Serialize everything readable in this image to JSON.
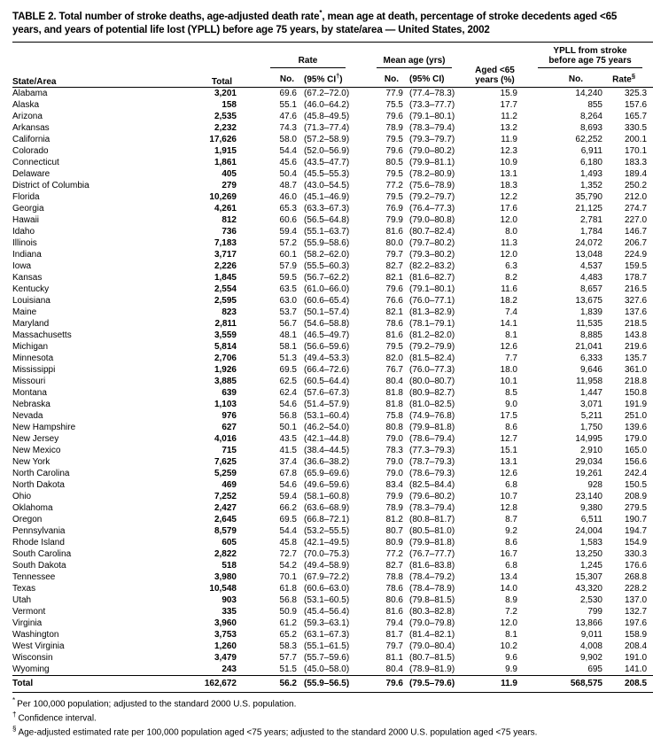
{
  "title": {
    "p1": "TABLE 2. Total number of stroke deaths, age-adjusted death rate",
    "sup": "*",
    "p2": ", mean age at death, percentage of stroke decedents aged <65 years, and years of potential life lost (YPLL) before age 75 years, by state/area — United States, 2002"
  },
  "header": {
    "state_area": "State/Area",
    "total": "Total",
    "rate_group": "Rate",
    "mean_group": "Mean age (yrs)",
    "aged_line1": "Aged <65",
    "aged_line2": "years (%)",
    "ypll_line1": "YPLL from stroke",
    "ypll_line2": "before age 75 years",
    "no_label": "No.",
    "ci_pre": "(95% CI",
    "dagger": "†",
    "paren": ")",
    "mean_ci": "(95% CI)",
    "ypll_rate_pre": "Rate",
    "section": "§"
  },
  "table": {
    "columns": [
      "State/Area",
      "Total",
      "Rate No.",
      "Rate (95% CI)",
      "Mean age (yrs) No.",
      "Mean age (95% CI)",
      "Aged <65 years (%)",
      "YPLL No.",
      "YPLL Rate"
    ],
    "rows": [
      [
        "Alabama",
        "3,201",
        "69.6",
        "(67.2–72.0)",
        "77.9",
        "(77.4–78.3)",
        "15.9",
        "14,240",
        "325.3"
      ],
      [
        "Alaska",
        "158",
        "55.1",
        "(46.0–64.2)",
        "75.5",
        "(73.3–77.7)",
        "17.7",
        "855",
        "157.6"
      ],
      [
        "Arizona",
        "2,535",
        "47.6",
        "(45.8–49.5)",
        "79.6",
        "(79.1–80.1)",
        "11.2",
        "8,264",
        "165.7"
      ],
      [
        "Arkansas",
        "2,232",
        "74.3",
        "(71.3–77.4)",
        "78.9",
        "(78.3–79.4)",
        "13.2",
        "8,693",
        "330.5"
      ],
      [
        "California",
        "17,626",
        "58.0",
        "(57.2–58.9)",
        "79.5",
        "(79.3–79.7)",
        "11.9",
        "62,252",
        "200.1"
      ],
      [
        "Colorado",
        "1,915",
        "54.4",
        "(52.0–56.9)",
        "79.6",
        "(79.0–80.2)",
        "12.3",
        "6,911",
        "170.1"
      ],
      [
        "Connecticut",
        "1,861",
        "45.6",
        "(43.5–47.7)",
        "80.5",
        "(79.9–81.1)",
        "10.9",
        "6,180",
        "183.3"
      ],
      [
        "Delaware",
        "405",
        "50.4",
        "(45.5–55.3)",
        "79.5",
        "(78.2–80.9)",
        "13.1",
        "1,493",
        "189.4"
      ],
      [
        "District of Columbia",
        "279",
        "48.7",
        "(43.0–54.5)",
        "77.2",
        "(75.6–78.9)",
        "18.3",
        "1,352",
        "250.2"
      ],
      [
        "Florida",
        "10,269",
        "46.0",
        "(45.1–46.9)",
        "79.5",
        "(79.2–79.7)",
        "12.2",
        "35,790",
        "212.0"
      ],
      [
        "Georgia",
        "4,261",
        "65.3",
        "(63.3–67.3)",
        "76.9",
        "(76.4–77.3)",
        "17.6",
        "21,125",
        "274.7"
      ],
      [
        "Hawaii",
        "812",
        "60.6",
        "(56.5–64.8)",
        "79.9",
        "(79.0–80.8)",
        "12.0",
        "2,781",
        "227.0"
      ],
      [
        "Idaho",
        "736",
        "59.4",
        "(55.1–63.7)",
        "81.6",
        "(80.7–82.4)",
        "8.0",
        "1,784",
        "146.7"
      ],
      [
        "Illinois",
        "7,183",
        "57.2",
        "(55.9–58.6)",
        "80.0",
        "(79.7–80.2)",
        "11.3",
        "24,072",
        "206.7"
      ],
      [
        "Indiana",
        "3,717",
        "60.1",
        "(58.2–62.0)",
        "79.7",
        "(79.3–80.2)",
        "12.0",
        "13,048",
        "224.9"
      ],
      [
        "Iowa",
        "2,226",
        "57.9",
        "(55.5–60.3)",
        "82.7",
        "(82.2–83.2)",
        "6.3",
        "4,537",
        "159.5"
      ],
      [
        "Kansas",
        "1,845",
        "59.5",
        "(56.7–62.2)",
        "82.1",
        "(81.6–82.7)",
        "8.2",
        "4,483",
        "178.7"
      ],
      [
        "Kentucky",
        "2,554",
        "63.5",
        "(61.0–66.0)",
        "79.6",
        "(79.1–80.1)",
        "11.6",
        "8,657",
        "216.5"
      ],
      [
        "Louisiana",
        "2,595",
        "63.0",
        "(60.6–65.4)",
        "76.6",
        "(76.0–77.1)",
        "18.2",
        "13,675",
        "327.6"
      ],
      [
        "Maine",
        "823",
        "53.7",
        "(50.1–57.4)",
        "82.1",
        "(81.3–82.9)",
        "7.4",
        "1,839",
        "137.6"
      ],
      [
        "Maryland",
        "2,811",
        "56.7",
        "(54.6–58.8)",
        "78.6",
        "(78.1–79.1)",
        "14.1",
        "11,535",
        "218.5"
      ],
      [
        "Massachusetts",
        "3,559",
        "48.1",
        "(46.5–49.7)",
        "81.6",
        "(81.2–82.0)",
        "8.1",
        "8,885",
        "143.8"
      ],
      [
        "Michigan",
        "5,814",
        "58.1",
        "(56.6–59.6)",
        "79.5",
        "(79.2–79.9)",
        "12.6",
        "21,041",
        "219.6"
      ],
      [
        "Minnesota",
        "2,706",
        "51.3",
        "(49.4–53.3)",
        "82.0",
        "(81.5–82.4)",
        "7.7",
        "6,333",
        "135.7"
      ],
      [
        "Mississippi",
        "1,926",
        "69.5",
        "(66.4–72.6)",
        "76.7",
        "(76.0–77.3)",
        "18.0",
        "9,646",
        "361.0"
      ],
      [
        "Missouri",
        "3,885",
        "62.5",
        "(60.5–64.4)",
        "80.4",
        "(80.0–80.7)",
        "10.1",
        "11,958",
        "218.8"
      ],
      [
        "Montana",
        "639",
        "62.4",
        "(57.6–67.3)",
        "81.8",
        "(80.9–82.7)",
        "8.5",
        "1,447",
        "150.8"
      ],
      [
        "Nebraska",
        "1,103",
        "54.6",
        "(51.4–57.9)",
        "81.8",
        "(81.0–82.5)",
        "9.0",
        "3,071",
        "191.9"
      ],
      [
        "Nevada",
        "976",
        "56.8",
        "(53.1–60.4)",
        "75.8",
        "(74.9–76.8)",
        "17.5",
        "5,211",
        "251.0"
      ],
      [
        "New Hampshire",
        "627",
        "50.1",
        "(46.2–54.0)",
        "80.8",
        "(79.9–81.8)",
        "8.6",
        "1,750",
        "139.6"
      ],
      [
        "New Jersey",
        "4,016",
        "43.5",
        "(42.1–44.8)",
        "79.0",
        "(78.6–79.4)",
        "12.7",
        "14,995",
        "179.0"
      ],
      [
        "New Mexico",
        "715",
        "41.5",
        "(38.4–44.5)",
        "78.3",
        "(77.3–79.3)",
        "15.1",
        "2,910",
        "165.0"
      ],
      [
        "New York",
        "7,625",
        "37.4",
        "(36.6–38.2)",
        "79.0",
        "(78.7–79.3)",
        "13.1",
        "29,034",
        "156.6"
      ],
      [
        "North Carolina",
        "5,259",
        "67.8",
        "(65.9–69.6)",
        "79.0",
        "(78.6–79.3)",
        "12.6",
        "19,261",
        "242.4"
      ],
      [
        "North Dakota",
        "469",
        "54.6",
        "(49.6–59.6)",
        "83.4",
        "(82.5–84.4)",
        "6.8",
        "928",
        "150.5"
      ],
      [
        "Ohio",
        "7,252",
        "59.4",
        "(58.1–60.8)",
        "79.9",
        "(79.6–80.2)",
        "10.7",
        "23,140",
        "208.9"
      ],
      [
        "Oklahoma",
        "2,427",
        "66.2",
        "(63.6–68.9)",
        "78.9",
        "(78.3–79.4)",
        "12.8",
        "9,380",
        "279.5"
      ],
      [
        "Oregon",
        "2,645",
        "69.5",
        "(66.8–72.1)",
        "81.2",
        "(80.8–81.7)",
        "8.7",
        "6,511",
        "190.7"
      ],
      [
        "Pennsylvania",
        "8,579",
        "54.4",
        "(53.2–55.5)",
        "80.7",
        "(80.5–81.0)",
        "9.2",
        "24,004",
        "194.7"
      ],
      [
        "Rhode Island",
        "605",
        "45.8",
        "(42.1–49.5)",
        "80.9",
        "(79.9–81.8)",
        "8.6",
        "1,583",
        "154.9"
      ],
      [
        "South Carolina",
        "2,822",
        "72.7",
        "(70.0–75.3)",
        "77.2",
        "(76.7–77.7)",
        "16.7",
        "13,250",
        "330.3"
      ],
      [
        "South Dakota",
        "518",
        "54.2",
        "(49.4–58.9)",
        "82.7",
        "(81.6–83.8)",
        "6.8",
        "1,245",
        "176.6"
      ],
      [
        "Tennessee",
        "3,980",
        "70.1",
        "(67.9–72.2)",
        "78.8",
        "(78.4–79.2)",
        "13.4",
        "15,307",
        "268.8"
      ],
      [
        "Texas",
        "10,548",
        "61.8",
        "(60.6–63.0)",
        "78.6",
        "(78.4–78.9)",
        "14.0",
        "43,320",
        "228.2"
      ],
      [
        "Utah",
        "903",
        "56.8",
        "(53.1–60.5)",
        "80.6",
        "(79.8–81.5)",
        "8.9",
        "2,530",
        "137.0"
      ],
      [
        "Vermont",
        "335",
        "50.9",
        "(45.4–56.4)",
        "81.6",
        "(80.3–82.8)",
        "7.2",
        "799",
        "132.7"
      ],
      [
        "Virginia",
        "3,960",
        "61.2",
        "(59.3–63.1)",
        "79.4",
        "(79.0–79.8)",
        "12.0",
        "13,866",
        "197.6"
      ],
      [
        "Washington",
        "3,753",
        "65.2",
        "(63.1–67.3)",
        "81.7",
        "(81.4–82.1)",
        "8.1",
        "9,011",
        "158.9"
      ],
      [
        "West Virginia",
        "1,260",
        "58.3",
        "(55.1–61.5)",
        "79.7",
        "(79.0–80.4)",
        "10.2",
        "4,008",
        "208.4"
      ],
      [
        "Wisconsin",
        "3,479",
        "57.7",
        "(55.7–59.6)",
        "81.1",
        "(80.7–81.5)",
        "9.6",
        "9,902",
        "191.0"
      ],
      [
        "Wyoming",
        "243",
        "51.5",
        "(45.0–58.0)",
        "80.4",
        "(78.9–81.9)",
        "9.9",
        "695",
        "141.0"
      ]
    ],
    "total_row": [
      "Total",
      "162,672",
      "56.2",
      "(55.9–56.5)",
      "79.6",
      "(79.5–79.6)",
      "11.9",
      "568,575",
      "208.5"
    ]
  },
  "footnotes": [
    {
      "marker": "*",
      "text": "Per 100,000 population; adjusted to the standard 2000 U.S. population."
    },
    {
      "marker": "†",
      "text": "Confidence interval."
    },
    {
      "marker": "§",
      "text": "Age-adjusted estimated rate per 100,000 population aged <75 years; adjusted to the standard 2000 U.S. population aged <75 years."
    }
  ]
}
